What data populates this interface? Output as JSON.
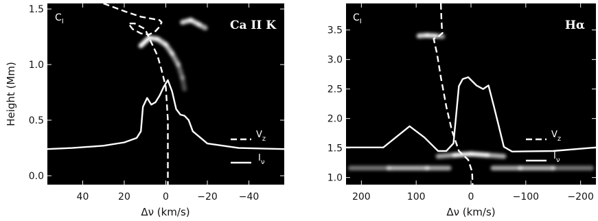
{
  "chart_data": [
    {
      "type": "line",
      "title": "Ca II K",
      "corner_label": "C",
      "corner_sub": "I",
      "xlabel": "Δν (km/s)",
      "ylabel": "Height (Mm)",
      "xlim": [
        57,
        -57
      ],
      "ylim": [
        -0.08,
        1.55
      ],
      "x_ticks": [
        "40",
        "20",
        "0",
        "−20",
        "−40"
      ],
      "x_tick_values": [
        40,
        20,
        0,
        -20,
        -40
      ],
      "y_ticks": [
        "0.0",
        "0.5",
        "1.0",
        "1.5"
      ],
      "y_tick_values": [
        0.0,
        0.5,
        1.0,
        1.5
      ],
      "legend_location": "lower-right",
      "series": [
        {
          "name": "V",
          "name_sub": "z",
          "style": "dashed",
          "x": [
            30,
            20,
            12,
            6,
            3,
            2,
            3,
            5,
            8,
            12,
            16,
            18,
            15,
            10,
            7,
            4,
            2,
            0,
            -1,
            -1,
            -1,
            -1
          ],
          "y": [
            1.55,
            1.48,
            1.43,
            1.41,
            1.4,
            1.38,
            1.34,
            1.3,
            1.27,
            1.28,
            1.32,
            1.37,
            1.37,
            1.32,
            1.2,
            1.08,
            0.95,
            0.8,
            0.5,
            0.25,
            0.05,
            -0.08
          ]
        },
        {
          "name": "I",
          "name_sub": "ν",
          "style": "solid",
          "x": [
            57,
            45,
            30,
            20,
            14,
            12,
            11,
            9,
            7,
            5,
            3,
            1,
            -1,
            -3,
            -5,
            -7,
            -9,
            -11,
            -13,
            -20,
            -35,
            -57
          ],
          "y": [
            0.24,
            0.25,
            0.27,
            0.3,
            0.34,
            0.4,
            0.62,
            0.7,
            0.64,
            0.66,
            0.72,
            0.8,
            0.86,
            0.76,
            0.6,
            0.55,
            0.54,
            0.5,
            0.4,
            0.29,
            0.25,
            0.24
          ]
        }
      ],
      "intensity_features": [
        {
          "x": [
            12,
            8,
            4,
            0,
            -3,
            -6,
            -8,
            -9
          ],
          "y": [
            1.17,
            1.24,
            1.23,
            1.18,
            1.1,
            1.0,
            0.88,
            0.78
          ],
          "brightness": [
            1.0,
            1.0,
            0.9,
            0.8,
            0.7,
            0.5,
            0.35,
            0.25
          ]
        },
        {
          "x": [
            -8,
            -12,
            -16,
            -19
          ],
          "y": [
            1.38,
            1.4,
            1.36,
            1.33
          ],
          "brightness": [
            0.8,
            0.9,
            0.8,
            0.6
          ]
        }
      ]
    },
    {
      "type": "line",
      "title": "Hα",
      "corner_label": "C",
      "corner_sub": "I",
      "xlabel": "Δν (km/s)",
      "ylabel": "",
      "xlim": [
        228,
        -228
      ],
      "ylim": [
        0.88,
        3.95
      ],
      "x_ticks": [
        "200",
        "100",
        "0",
        "−100",
        "−200"
      ],
      "x_tick_values": [
        200,
        100,
        0,
        -100,
        -200
      ],
      "y_ticks": [
        "1.0",
        "1.5",
        "2.0",
        "2.5",
        "3.0",
        "3.5"
      ],
      "y_tick_values": [
        1.0,
        1.5,
        2.0,
        2.5,
        3.0,
        3.5
      ],
      "legend_location": "lower-right",
      "series": [
        {
          "name": "V",
          "name_sub": "z",
          "style": "dashed",
          "x": [
            55,
            54,
            53,
            52,
            58,
            68,
            62,
            55,
            45,
            35,
            22,
            5,
            -2,
            -3
          ],
          "y": [
            3.95,
            3.7,
            3.52,
            3.45,
            3.4,
            3.35,
            3.1,
            2.7,
            2.2,
            1.8,
            1.45,
            1.3,
            1.1,
            0.88
          ]
        },
        {
          "name": "I",
          "name_sub": "ν",
          "style": "solid",
          "x": [
            228,
            160,
            112,
            85,
            60,
            45,
            32,
            22,
            15,
            5,
            -10,
            -22,
            -32,
            -42,
            -50,
            -60,
            -75,
            -150,
            -228
          ],
          "y": [
            1.51,
            1.51,
            1.87,
            1.68,
            1.45,
            1.45,
            1.58,
            2.55,
            2.67,
            2.7,
            2.56,
            2.5,
            2.56,
            2.2,
            1.9,
            1.52,
            1.44,
            1.45,
            1.51
          ]
        }
      ],
      "intensity_features": [
        {
          "x": [
            95,
            80,
            65,
            52
          ],
          "y": [
            3.4,
            3.41,
            3.4,
            3.39
          ],
          "brightness": [
            0.7,
            1.0,
            0.8,
            0.5
          ]
        },
        {
          "x": [
            60,
            30,
            0,
            -30,
            -60
          ],
          "y": [
            1.36,
            1.38,
            1.4,
            1.38,
            1.36
          ],
          "brightness": [
            0.4,
            0.9,
            1.0,
            0.9,
            0.5
          ]
        },
        {
          "x": [
            220,
            150,
            80,
            40
          ],
          "y": [
            1.16,
            1.16,
            1.16,
            1.16
          ],
          "brightness": [
            0.3,
            0.6,
            0.8,
            0.5
          ]
        },
        {
          "x": [
            -40,
            -90,
            -150,
            -220
          ],
          "y": [
            1.16,
            1.16,
            1.16,
            1.16
          ],
          "brightness": [
            0.5,
            0.8,
            0.6,
            0.3
          ]
        }
      ]
    }
  ]
}
